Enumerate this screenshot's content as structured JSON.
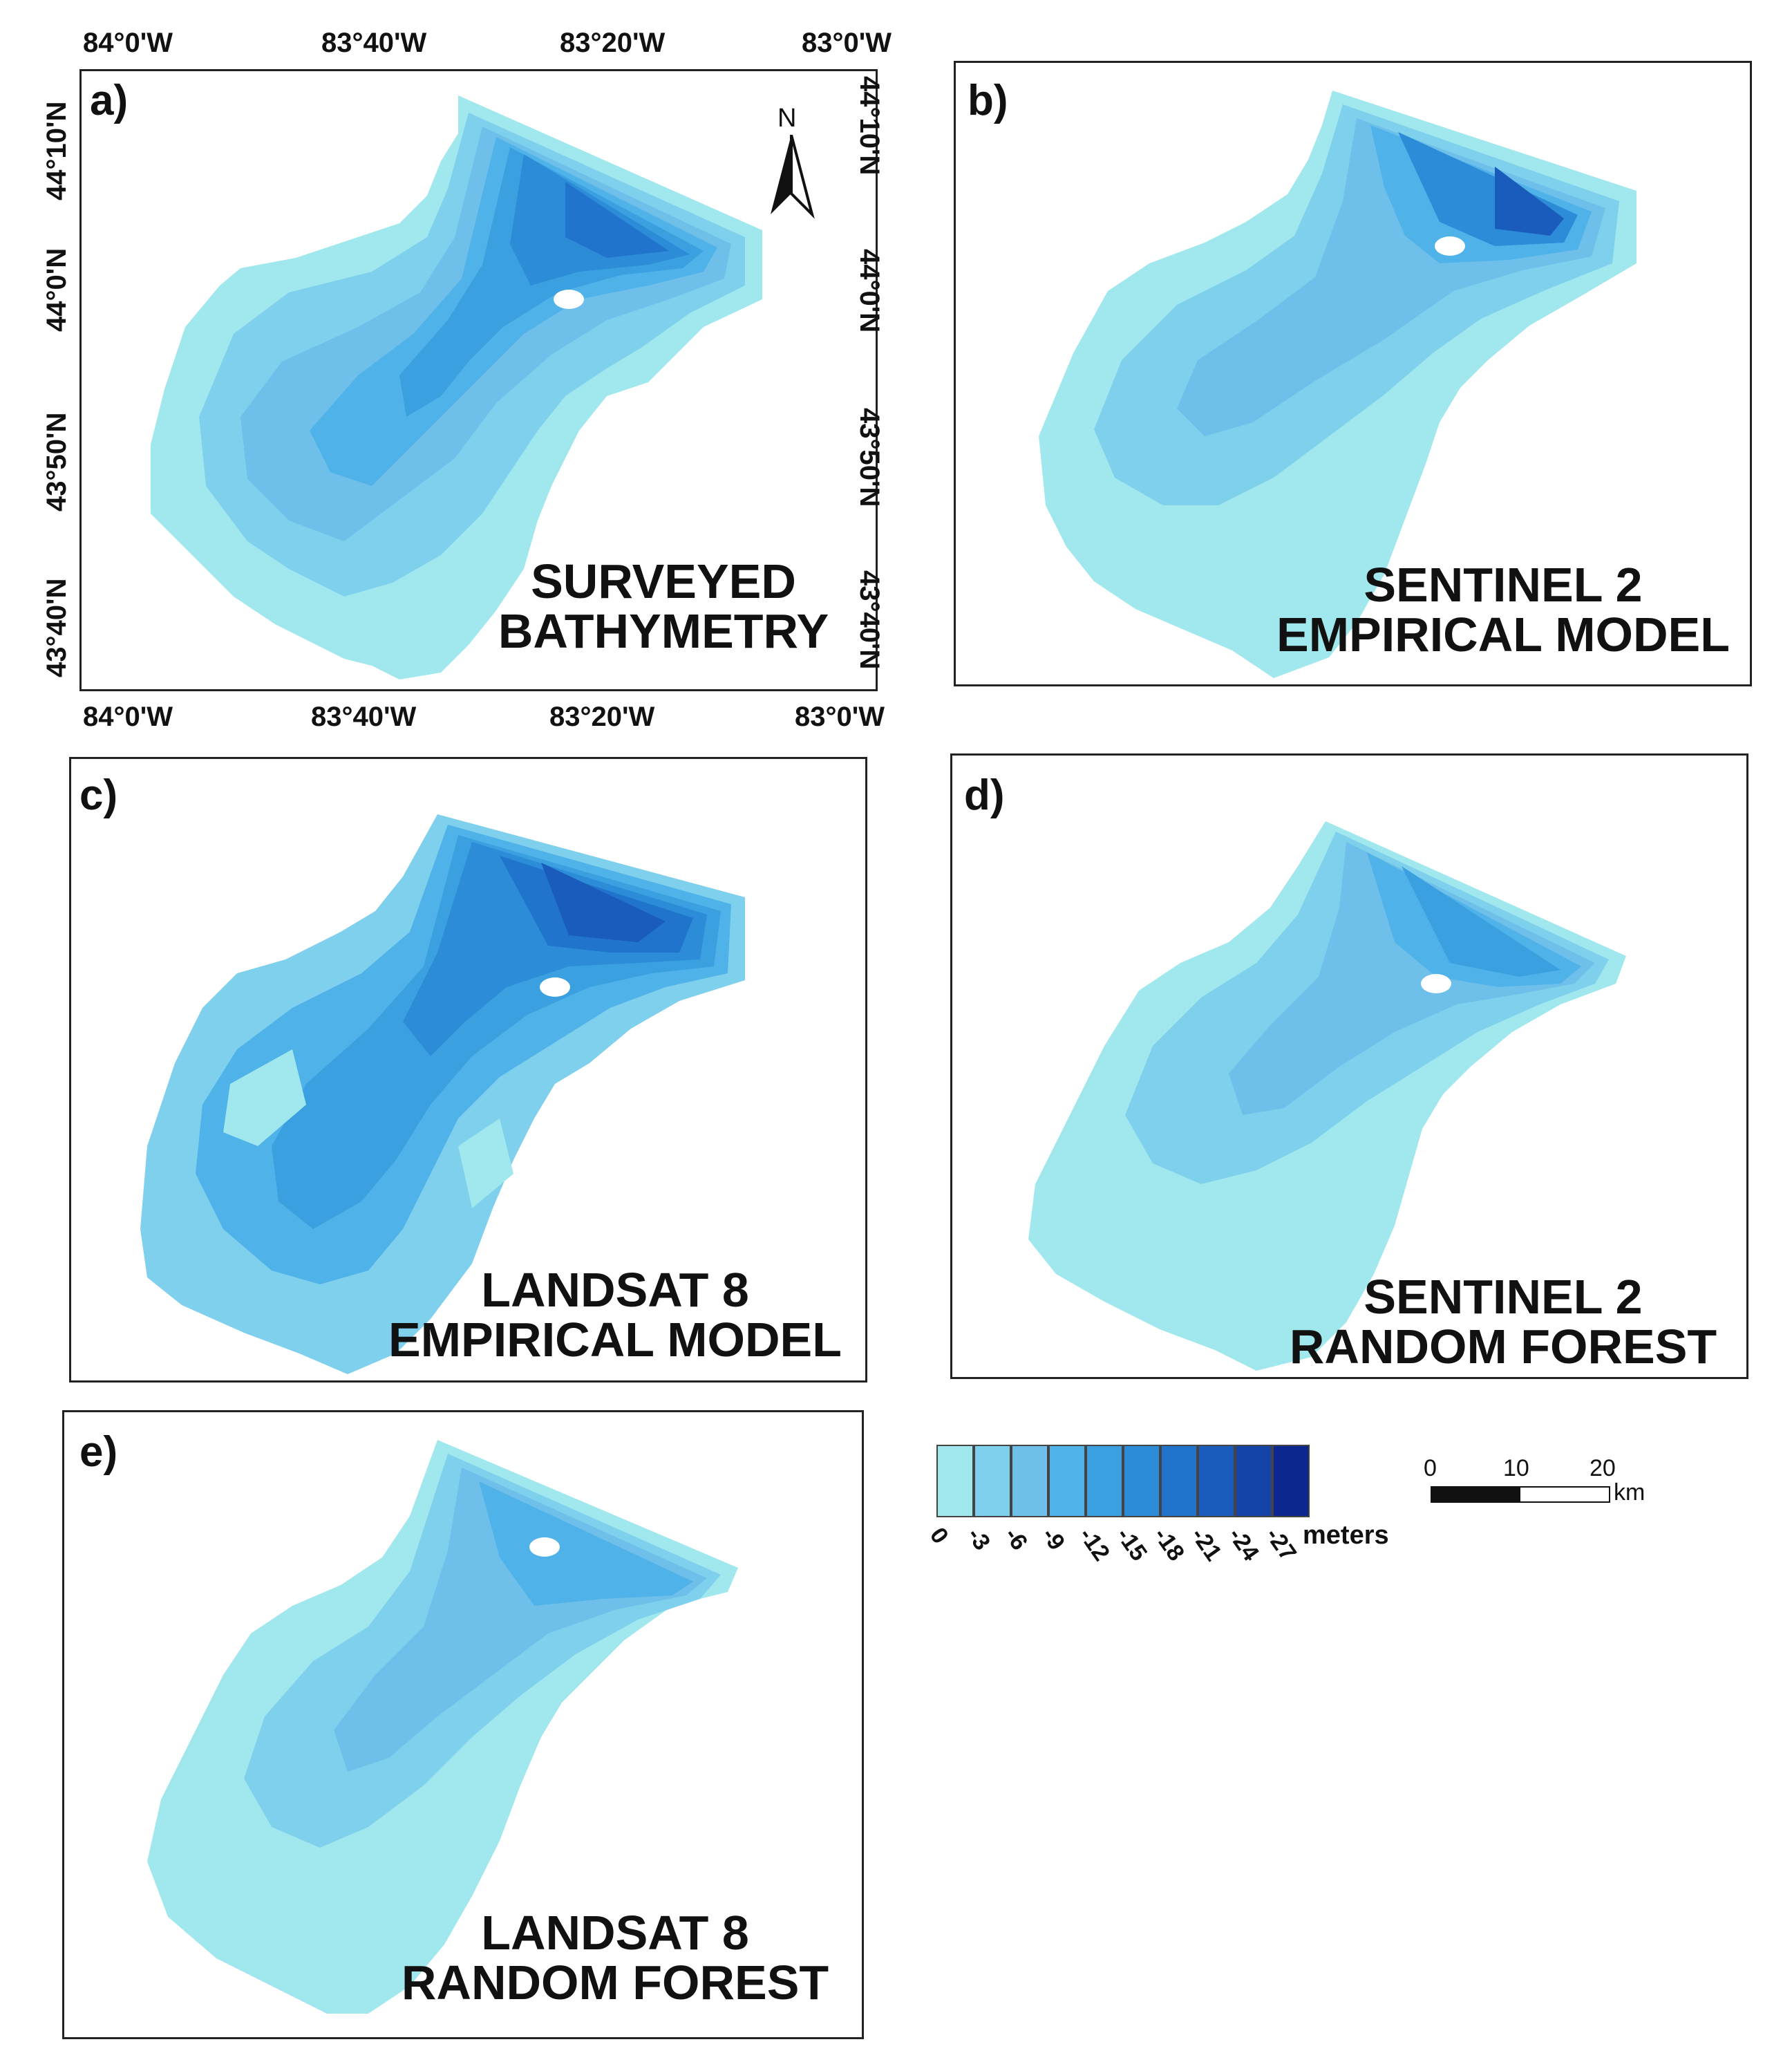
{
  "panels": [
    {
      "label": "a)",
      "title_line1": "SURVEYED",
      "title_line2": "BATHYMETRY"
    },
    {
      "label": "b)",
      "title_line1": "SENTINEL 2",
      "title_line2": "EMPIRICAL MODEL"
    },
    {
      "label": "c)",
      "title_line1": "LANDSAT 8",
      "title_line2": "EMPIRICAL MODEL"
    },
    {
      "label": "d)",
      "title_line1": "SENTINEL 2",
      "title_line2": "RANDOM FOREST"
    },
    {
      "label": "e)",
      "title_line1": "LANDSAT 8",
      "title_line2": "RANDOM FOREST"
    }
  ],
  "axes": {
    "lon_labels": [
      "84°0'W",
      "83°40'W",
      "83°20'W",
      "83°0'W"
    ],
    "lat_labels": [
      "44°10'N",
      "44°0'N",
      "43°50'N",
      "43°40'N"
    ]
  },
  "north_arrow": {
    "label": "N"
  },
  "legend": {
    "unit": "meters",
    "values": [
      "0",
      "-3",
      "-6",
      "-9",
      "-12",
      "-15",
      "-18",
      "-21",
      "-24",
      "-27"
    ],
    "colors": [
      "#a0e8ee",
      "#7fd0ec",
      "#6ec0ea",
      "#4fb2e8",
      "#3aa0e0",
      "#2c8cd8",
      "#2074cc",
      "#1a5cbc",
      "#1444a8",
      "#0c2890"
    ]
  },
  "scalebar": {
    "ticks": [
      "0",
      "10",
      "20"
    ],
    "unit": "km"
  }
}
